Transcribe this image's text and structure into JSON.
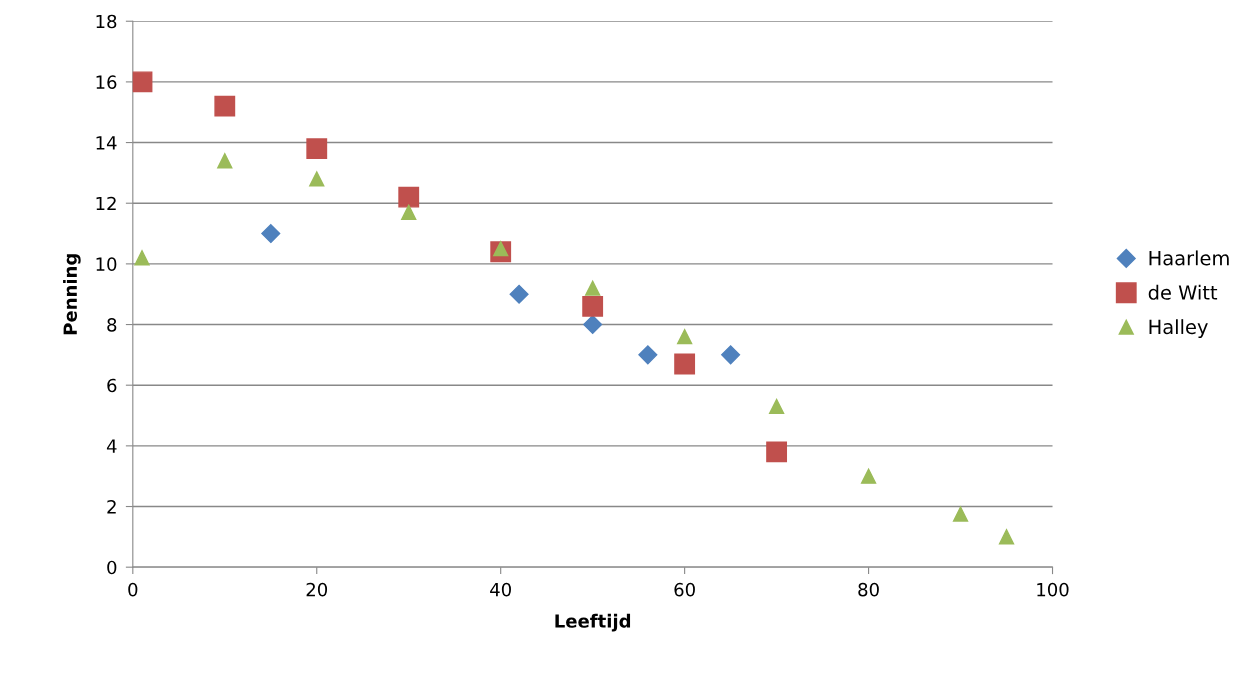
{
  "chart_data": {
    "type": "scatter",
    "xlabel": "Leeftijd",
    "ylabel": "Penning",
    "xlim": [
      0,
      100
    ],
    "xticks": [
      0,
      20,
      40,
      60,
      80,
      100
    ],
    "ylim": [
      0,
      18
    ],
    "yticks": [
      0,
      2,
      4,
      6,
      8,
      10,
      12,
      14,
      16,
      18
    ],
    "grid": "y",
    "legend": "right",
    "series": [
      {
        "name": "Haarlem",
        "color": "#4f81bd",
        "marker": "diamond",
        "x": [
          15,
          42,
          50,
          56,
          65
        ],
        "values": [
          11,
          9,
          8,
          7,
          7
        ]
      },
      {
        "name": "de Witt",
        "color": "#c0504d",
        "marker": "square",
        "x": [
          1,
          10,
          20,
          30,
          40,
          50,
          60,
          70
        ],
        "values": [
          16,
          15.2,
          13.8,
          12.2,
          10.4,
          8.6,
          6.7,
          3.8
        ]
      },
      {
        "name": "Halley",
        "color": "#9bbb59",
        "marker": "triangle",
        "x": [
          1,
          10,
          20,
          30,
          40,
          50,
          60,
          70,
          80,
          90,
          95
        ],
        "values": [
          10.2,
          13.4,
          12.8,
          11.7,
          10.5,
          9.2,
          7.6,
          5.3,
          3.0,
          1.75,
          1.0
        ]
      }
    ]
  }
}
